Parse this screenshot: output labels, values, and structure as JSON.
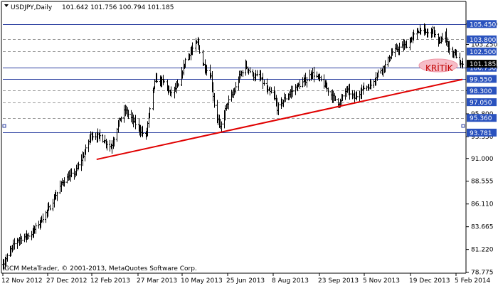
{
  "header": {
    "symbol": "USDJPY,Daily",
    "ohlc": "101.642 101.756 100.794 101.185"
  },
  "copyright": "GCM MetaTrader, © 2001-2013, MetaQuotes Software Corp.",
  "annotation": "KRİTİK",
  "colors": {
    "candle": "#000000",
    "level_line": "#2b3fa0",
    "label_box": "#2a52be",
    "trendline": "#e00000",
    "grid": "#999999",
    "annotation_fill": "#f6bcc7"
  },
  "chart_data": {
    "type": "ohlc",
    "title": "USDJPY,Daily",
    "ylim": [
      78.67,
      107.88
    ],
    "grid": true,
    "x_ticks": [
      "12 Nov 2012",
      "27 Dec 2012",
      "12 Feb 2013",
      "27 Mar 2013",
      "10 May 2013",
      "25 Jun 2013",
      "8 Aug 2013",
      "23 Sep 2013",
      "5 Nov 2013",
      "19 Dec 2013",
      "5 Feb 2014"
    ],
    "y_ticks": [
      "105.450",
      "103.250",
      "100.750",
      "98.300",
      "95.800",
      "93.350",
      "91.000",
      "88.555",
      "86.110",
      "83.665",
      "81.220",
      "78.775"
    ],
    "levels": [
      {
        "value": 105.45,
        "label": "105.450",
        "style": "solid"
      },
      {
        "value": 103.8,
        "label": "103.800",
        "style": "dashed"
      },
      {
        "value": 102.5,
        "label": "102.500",
        "style": "dashed"
      },
      {
        "value": 100.75,
        "label": "100.750",
        "style": "solid"
      },
      {
        "value": 99.55,
        "label": "99.550",
        "style": "solid"
      },
      {
        "value": 98.3,
        "label": "98.300",
        "style": "dashed"
      },
      {
        "value": 97.05,
        "label": "97.050",
        "style": "dashed"
      },
      {
        "value": 95.36,
        "label": "95.360",
        "style": "dashed"
      },
      {
        "value": 93.781,
        "label": "93.781",
        "style": "solid"
      }
    ],
    "current_price": {
      "value": 101.185,
      "label": "101.185"
    },
    "trendline": {
      "from": {
        "date": "2013-02-12",
        "price": 90.9
      },
      "to": {
        "date": "2014-02-06",
        "price": 99.5
      }
    },
    "anchors": [
      {
        "date": "2012-11-12",
        "price": 79.6
      },
      {
        "date": "2012-11-25",
        "price": 82.2
      },
      {
        "date": "2012-12-10",
        "price": 82.9
      },
      {
        "date": "2012-12-27",
        "price": 85.6
      },
      {
        "date": "2013-01-10",
        "price": 88.6
      },
      {
        "date": "2013-01-22",
        "price": 89.5
      },
      {
        "date": "2013-01-31",
        "price": 91.6
      },
      {
        "date": "2013-02-06",
        "price": 93.5
      },
      {
        "date": "2013-02-15",
        "price": 93.4
      },
      {
        "date": "2013-02-26",
        "price": 92.2
      },
      {
        "date": "2013-03-06",
        "price": 95.0
      },
      {
        "date": "2013-03-12",
        "price": 96.2
      },
      {
        "date": "2013-03-20",
        "price": 95.0
      },
      {
        "date": "2013-04-01",
        "price": 93.3
      },
      {
        "date": "2013-04-08",
        "price": 98.3
      },
      {
        "date": "2013-04-11",
        "price": 99.5
      },
      {
        "date": "2013-04-19",
        "price": 99.2
      },
      {
        "date": "2013-04-25",
        "price": 98.0
      },
      {
        "date": "2013-05-03",
        "price": 98.8
      },
      {
        "date": "2013-05-10",
        "price": 101.6
      },
      {
        "date": "2013-05-17",
        "price": 102.8
      },
      {
        "date": "2013-05-22",
        "price": 103.5
      },
      {
        "date": "2013-05-27",
        "price": 101.2
      },
      {
        "date": "2013-06-04",
        "price": 99.8
      },
      {
        "date": "2013-06-07",
        "price": 96.8
      },
      {
        "date": "2013-06-13",
        "price": 94.2
      },
      {
        "date": "2013-06-20",
        "price": 97.0
      },
      {
        "date": "2013-06-26",
        "price": 98.0
      },
      {
        "date": "2013-07-02",
        "price": 99.8
      },
      {
        "date": "2013-07-08",
        "price": 101.0
      },
      {
        "date": "2013-07-15",
        "price": 99.9
      },
      {
        "date": "2013-07-22",
        "price": 99.8
      },
      {
        "date": "2013-07-29",
        "price": 98.3
      },
      {
        "date": "2013-08-05",
        "price": 97.8
      },
      {
        "date": "2013-08-08",
        "price": 96.4
      },
      {
        "date": "2013-08-16",
        "price": 97.5
      },
      {
        "date": "2013-08-26",
        "price": 98.6
      },
      {
        "date": "2013-09-06",
        "price": 99.5
      },
      {
        "date": "2013-09-11",
        "price": 100.2
      },
      {
        "date": "2013-09-20",
        "price": 99.4
      },
      {
        "date": "2013-10-01",
        "price": 97.7
      },
      {
        "date": "2013-10-08",
        "price": 96.9
      },
      {
        "date": "2013-10-15",
        "price": 98.4
      },
      {
        "date": "2013-10-23",
        "price": 97.5
      },
      {
        "date": "2013-11-01",
        "price": 98.6
      },
      {
        "date": "2013-11-08",
        "price": 98.9
      },
      {
        "date": "2013-11-15",
        "price": 100.2
      },
      {
        "date": "2013-11-22",
        "price": 101.0
      },
      {
        "date": "2013-11-29",
        "price": 102.4
      },
      {
        "date": "2013-12-06",
        "price": 102.9
      },
      {
        "date": "2013-12-13",
        "price": 103.2
      },
      {
        "date": "2013-12-20",
        "price": 104.2
      },
      {
        "date": "2013-12-27",
        "price": 105.0
      },
      {
        "date": "2014-01-02",
        "price": 104.4
      },
      {
        "date": "2014-01-08",
        "price": 104.8
      },
      {
        "date": "2014-01-13",
        "price": 103.4
      },
      {
        "date": "2014-01-20",
        "price": 104.2
      },
      {
        "date": "2014-01-24",
        "price": 102.6
      },
      {
        "date": "2014-01-30",
        "price": 102.3
      },
      {
        "date": "2014-02-04",
        "price": 101.0
      },
      {
        "date": "2014-02-06",
        "price": 101.2
      }
    ]
  }
}
